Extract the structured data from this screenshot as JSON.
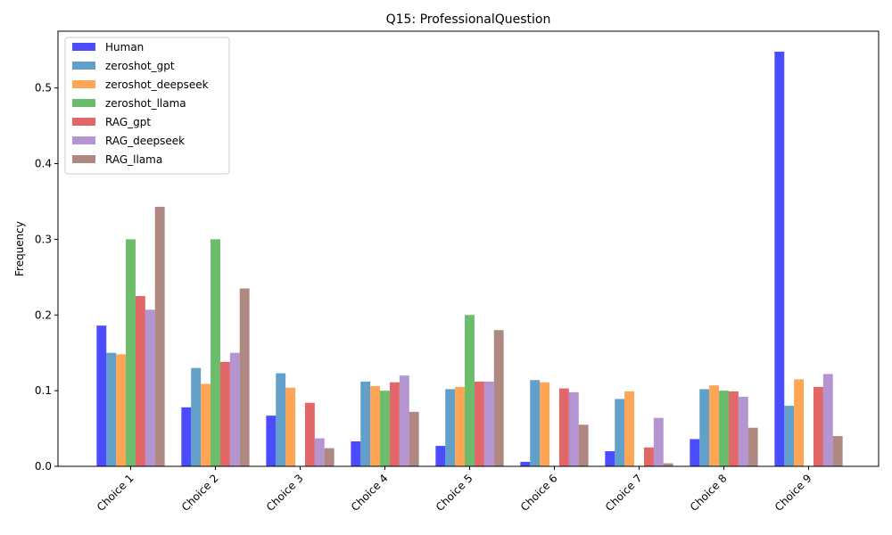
{
  "chart_data": {
    "type": "bar",
    "title": "Q15: ProfessionalQuestion",
    "xlabel": "",
    "ylabel": "Frequency",
    "ylim": [
      0,
      0.575
    ],
    "yticks": [
      0.0,
      0.1,
      0.2,
      0.3,
      0.4,
      0.5
    ],
    "ytick_labels": [
      "0.0",
      "0.1",
      "0.2",
      "0.3",
      "0.4",
      "0.5"
    ],
    "grid": false,
    "legend_position": "top-left",
    "categories": [
      "Choice 1",
      "Choice 2",
      "Choice 3",
      "Choice 4",
      "Choice 5",
      "Choice 6",
      "Choice 7",
      "Choice 8",
      "Choice 9"
    ],
    "series": [
      {
        "name": "Human",
        "color": "#0000ff",
        "values": [
          0.186,
          0.078,
          0.067,
          0.033,
          0.027,
          0.006,
          0.02,
          0.036,
          0.548
        ]
      },
      {
        "name": "zeroshot_gpt",
        "color": "#1f77b4",
        "values": [
          0.15,
          0.13,
          0.123,
          0.112,
          0.102,
          0.114,
          0.089,
          0.102,
          0.08
        ]
      },
      {
        "name": "zeroshot_deepseek",
        "color": "#ff7f0e",
        "values": [
          0.148,
          0.109,
          0.104,
          0.106,
          0.105,
          0.111,
          0.099,
          0.107,
          0.115
        ]
      },
      {
        "name": "zeroshot_llama",
        "color": "#2ca02c",
        "values": [
          0.3,
          0.3,
          0.0,
          0.1,
          0.2,
          0.0,
          0.0,
          0.1,
          0.0
        ]
      },
      {
        "name": "RAG_gpt",
        "color": "#d62728",
        "values": [
          0.225,
          0.138,
          0.084,
          0.111,
          0.112,
          0.103,
          0.025,
          0.099,
          0.105
        ]
      },
      {
        "name": "RAG_deepseek",
        "color": "#9467bd",
        "values": [
          0.207,
          0.15,
          0.037,
          0.12,
          0.112,
          0.098,
          0.064,
          0.092,
          0.122
        ]
      },
      {
        "name": "RAG_llama",
        "color": "#8c564b",
        "values": [
          0.343,
          0.235,
          0.024,
          0.072,
          0.18,
          0.055,
          0.004,
          0.051,
          0.04
        ]
      }
    ]
  }
}
